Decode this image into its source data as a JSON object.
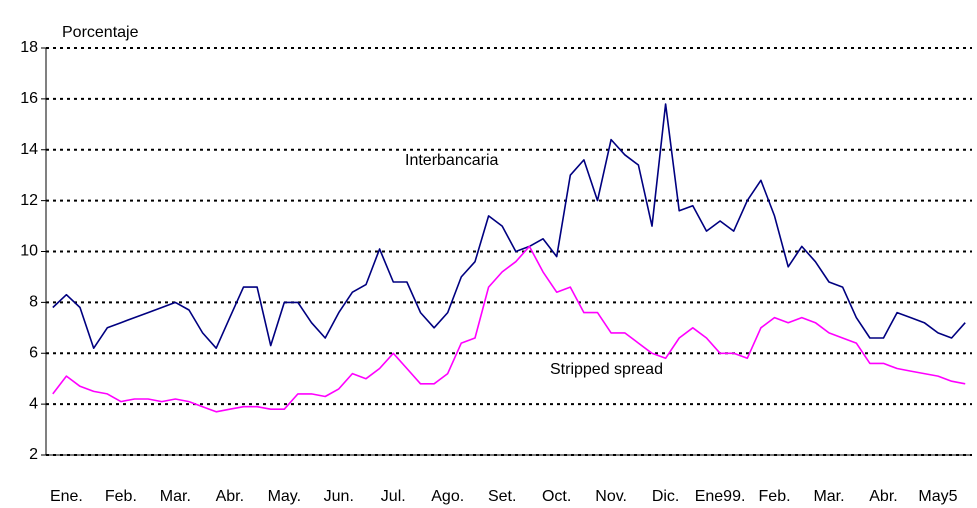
{
  "chart_data": {
    "type": "line",
    "y_label": "Porcentaje",
    "ylim": [
      2,
      18
    ],
    "yticks": [
      2,
      4,
      6,
      8,
      10,
      12,
      14,
      16,
      18
    ],
    "grid": true,
    "categories": [
      null,
      "Ene.",
      null,
      null,
      null,
      "Feb.",
      null,
      null,
      null,
      "Mar.",
      null,
      null,
      null,
      "Abr.",
      null,
      null,
      null,
      "May.",
      null,
      null,
      null,
      "Jun.",
      null,
      null,
      null,
      "Jul.",
      null,
      null,
      null,
      "Ago.",
      null,
      null,
      null,
      "Set.",
      null,
      null,
      null,
      "Oct.",
      null,
      null,
      null,
      "Nov.",
      null,
      null,
      null,
      "Dic.",
      null,
      null,
      null,
      "Ene99.",
      null,
      null,
      null,
      "Feb.",
      null,
      null,
      null,
      "Mar.",
      null,
      null,
      null,
      "Abr.",
      null,
      null,
      null,
      "May5",
      null,
      null
    ],
    "series": [
      {
        "name": "Interbancaria",
        "color": "#000080",
        "values": [
          7.8,
          8.3,
          7.8,
          6.2,
          7.0,
          7.2,
          7.4,
          7.6,
          7.8,
          8.0,
          7.7,
          6.8,
          6.2,
          7.4,
          8.6,
          8.6,
          6.3,
          8.0,
          8.0,
          7.2,
          6.6,
          7.6,
          8.4,
          8.7,
          10.1,
          8.8,
          8.8,
          7.6,
          7.0,
          7.6,
          9.0,
          9.6,
          11.4,
          11.0,
          10.0,
          10.2,
          10.5,
          9.8,
          13.0,
          13.6,
          12.0,
          14.4,
          13.8,
          13.4,
          11.0,
          15.8,
          11.6,
          11.8,
          10.8,
          11.2,
          10.8,
          12.0,
          12.8,
          11.4,
          9.4,
          10.2,
          9.6,
          8.8,
          8.6,
          7.4,
          6.6,
          6.6,
          7.6,
          7.4,
          7.2,
          6.8,
          6.6,
          7.2
        ]
      },
      {
        "name": "Stripped spread",
        "color": "#ff00ff",
        "values": [
          4.4,
          5.1,
          4.7,
          4.5,
          4.4,
          4.1,
          4.2,
          4.2,
          4.1,
          4.2,
          4.1,
          3.9,
          3.7,
          3.8,
          3.9,
          3.9,
          3.8,
          3.8,
          4.4,
          4.4,
          4.3,
          4.6,
          5.2,
          5.0,
          5.4,
          6.0,
          5.4,
          4.8,
          4.8,
          5.2,
          6.4,
          6.6,
          8.6,
          9.2,
          9.6,
          10.2,
          9.2,
          8.4,
          8.6,
          7.6,
          7.6,
          6.8,
          6.8,
          6.4,
          6.0,
          5.8,
          6.6,
          7.0,
          6.6,
          6.0,
          6.0,
          5.8,
          7.0,
          7.4,
          7.2,
          7.4,
          7.2,
          6.8,
          6.6,
          6.4,
          5.6,
          5.6,
          5.4,
          5.3,
          5.2,
          5.1,
          4.9,
          4.8
        ]
      }
    ]
  }
}
